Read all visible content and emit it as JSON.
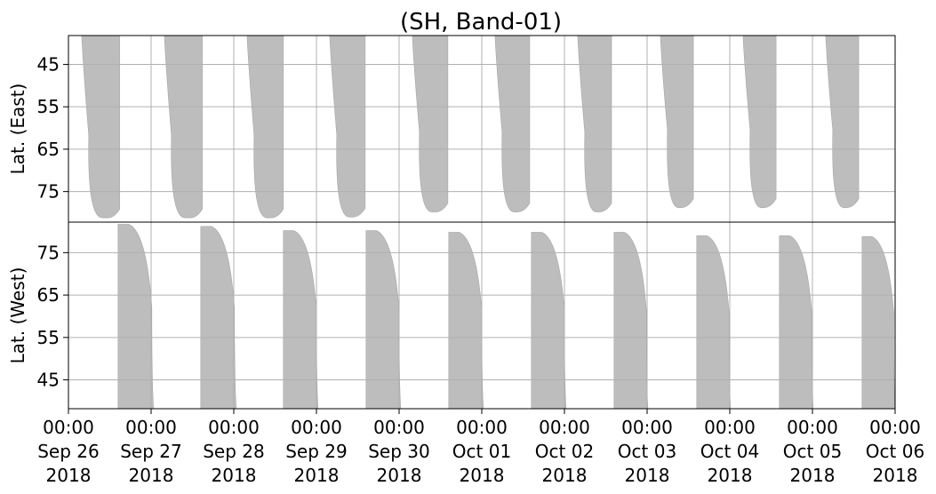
{
  "chart_data": {
    "type": "area",
    "title": "(SH, Band-01)",
    "grid": true,
    "fill_color": "#bdbdbd",
    "grid_color": "#b0b0b0",
    "x_ticks": [
      {
        "day": 0,
        "time": "00:00",
        "date": "Sep 26",
        "year": "2018"
      },
      {
        "day": 1,
        "time": "00:00",
        "date": "Sep 27",
        "year": "2018"
      },
      {
        "day": 2,
        "time": "00:00",
        "date": "Sep 28",
        "year": "2018"
      },
      {
        "day": 3,
        "time": "00:00",
        "date": "Sep 29",
        "year": "2018"
      },
      {
        "day": 4,
        "time": "00:00",
        "date": "Sep 30",
        "year": "2018"
      },
      {
        "day": 5,
        "time": "00:00",
        "date": "Oct 01",
        "year": "2018"
      },
      {
        "day": 6,
        "time": "00:00",
        "date": "Oct 02",
        "year": "2018"
      },
      {
        "day": 7,
        "time": "00:00",
        "date": "Oct 03",
        "year": "2018"
      },
      {
        "day": 8,
        "time": "00:00",
        "date": "Oct 04",
        "year": "2018"
      },
      {
        "day": 9,
        "time": "00:00",
        "date": "Oct 05",
        "year": "2018"
      },
      {
        "day": 10,
        "time": "00:00",
        "date": "Oct 06",
        "year": "2018"
      }
    ],
    "panels": [
      {
        "name": "east",
        "ylabel": "Lat. (East)",
        "ylim": [
          38.2,
          82.2
        ],
        "y_inverted": true,
        "yticks": [
          45,
          55,
          65,
          75
        ],
        "swaths": [
          {
            "start": 0.16,
            "end": 0.62,
            "top": 38.2,
            "bottom": 81.2
          },
          {
            "start": 1.16,
            "end": 1.62,
            "top": 38.2,
            "bottom": 81.2
          },
          {
            "start": 2.16,
            "end": 2.6,
            "top": 38.2,
            "bottom": 81.2
          },
          {
            "start": 3.16,
            "end": 3.59,
            "top": 38.2,
            "bottom": 81.0
          },
          {
            "start": 4.16,
            "end": 4.59,
            "top": 38.2,
            "bottom": 79.8
          },
          {
            "start": 5.16,
            "end": 5.58,
            "top": 38.2,
            "bottom": 79.8
          },
          {
            "start": 6.16,
            "end": 6.57,
            "top": 38.2,
            "bottom": 79.8
          },
          {
            "start": 7.16,
            "end": 7.56,
            "top": 38.2,
            "bottom": 78.8
          },
          {
            "start": 8.16,
            "end": 8.56,
            "top": 38.2,
            "bottom": 78.8
          },
          {
            "start": 9.16,
            "end": 9.56,
            "top": 38.2,
            "bottom": 78.8
          }
        ]
      },
      {
        "name": "west",
        "ylabel": "Lat. (West)",
        "ylim": [
          38.2,
          82.2
        ],
        "y_inverted": false,
        "yticks": [
          45,
          55,
          65,
          75
        ],
        "swaths": [
          {
            "start": 0.6,
            "end": 1.03,
            "top": 81.7,
            "bottom": 38.2
          },
          {
            "start": 1.6,
            "end": 2.03,
            "top": 81.2,
            "bottom": 38.2
          },
          {
            "start": 2.6,
            "end": 3.02,
            "top": 80.2,
            "bottom": 38.2
          },
          {
            "start": 3.6,
            "end": 4.02,
            "top": 80.2,
            "bottom": 38.2
          },
          {
            "start": 4.6,
            "end": 5.02,
            "top": 79.8,
            "bottom": 38.2
          },
          {
            "start": 5.6,
            "end": 6.02,
            "top": 79.8,
            "bottom": 38.2
          },
          {
            "start": 6.6,
            "end": 7.01,
            "top": 79.8,
            "bottom": 38.2
          },
          {
            "start": 7.6,
            "end": 8.01,
            "top": 79.0,
            "bottom": 38.2
          },
          {
            "start": 8.6,
            "end": 9.01,
            "top": 79.0,
            "bottom": 38.2
          },
          {
            "start": 9.6,
            "end": 10.0,
            "top": 78.8,
            "bottom": 38.2
          }
        ]
      }
    ]
  }
}
